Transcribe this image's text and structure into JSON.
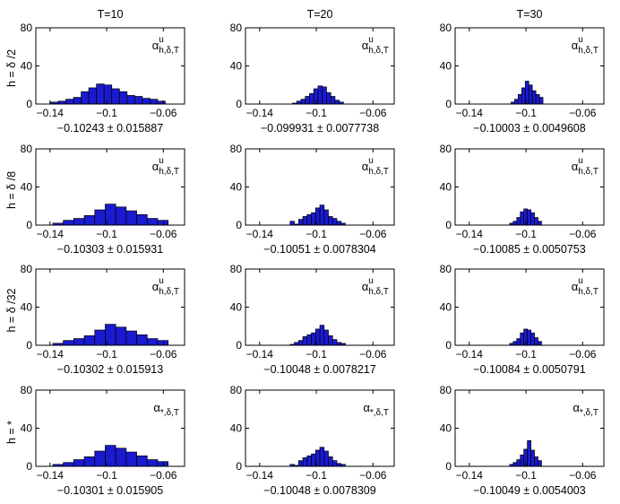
{
  "figure": {
    "columns": [
      "T=10",
      "T=20",
      "T=30"
    ],
    "rows": [
      "h = δ /2",
      "h = δ /8",
      "h = δ /32",
      "h = *"
    ]
  },
  "chart_data": [
    {
      "type": "bar",
      "row": 0,
      "col": 0,
      "title": "T=10",
      "row_label": "h = δ /2",
      "xlabel": "−0.10243 ± 0.015887",
      "annotation": {
        "base": "α",
        "sup": "u",
        "sub": "h,δ,T"
      },
      "xlim": [
        -0.15,
        -0.045
      ],
      "ylim": [
        0,
        80
      ],
      "xticks": [
        "−0.14",
        "−0.1",
        "−0.06"
      ],
      "yticks": [
        "0",
        "40",
        "80"
      ],
      "bin_edges": [
        -0.1396,
        -0.1342,
        -0.1288,
        -0.1234,
        -0.118,
        -0.1126,
        -0.1072,
        -0.1018,
        -0.0964,
        -0.091,
        -0.0856,
        -0.0802,
        -0.0748,
        -0.0694,
        -0.064,
        -0.0586
      ],
      "counts": [
        2,
        3,
        5,
        7,
        13,
        17,
        21,
        20,
        16,
        13,
        9,
        8,
        6,
        5,
        3
      ]
    },
    {
      "type": "bar",
      "row": 0,
      "col": 1,
      "title": "T=20",
      "row_label": "h = δ /2",
      "xlabel": "−0.099931 ± 0.0077738",
      "annotation": {
        "base": "α",
        "sup": "u",
        "sub": "h,δ,T"
      },
      "xlim": [
        -0.15,
        -0.045
      ],
      "ylim": [
        0,
        80
      ],
      "xticks": [
        "−0.14",
        "−0.1",
        "−0.06"
      ],
      "yticks": [
        "0",
        "40",
        "80"
      ],
      "bin_edges": [
        -0.1168,
        -0.1138,
        -0.1108,
        -0.1078,
        -0.1048,
        -0.1018,
        -0.0988,
        -0.0958,
        -0.0928,
        -0.0898,
        -0.0868,
        -0.0838,
        -0.0808
      ],
      "counts": [
        1,
        3,
        5,
        8,
        11,
        16,
        19,
        18,
        12,
        8,
        4,
        2
      ]
    },
    {
      "type": "bar",
      "row": 0,
      "col": 2,
      "title": "T=30",
      "row_label": "h = δ /2",
      "xlabel": "−0.10003 ± 0.0049608",
      "annotation": {
        "base": "α",
        "sup": "u",
        "sub": "h,δ,T"
      },
      "xlim": [
        -0.15,
        -0.045
      ],
      "ylim": [
        0,
        80
      ],
      "xticks": [
        "−0.14",
        "−0.1",
        "−0.06"
      ],
      "yticks": [
        "0",
        "40",
        "80"
      ],
      "bin_edges": [
        -0.1105,
        -0.108,
        -0.1055,
        -0.103,
        -0.1005,
        -0.098,
        -0.0955,
        -0.093,
        -0.0905,
        -0.088
      ],
      "counts": [
        2,
        5,
        10,
        17,
        24,
        20,
        14,
        10,
        7
      ]
    },
    {
      "type": "bar",
      "row": 1,
      "col": 0,
      "title": "T=10",
      "row_label": "h = δ /8",
      "xlabel": "−0.10303 ± 0.015931",
      "annotation": {
        "base": "α",
        "sup": "u",
        "sub": "h,δ,T"
      },
      "xlim": [
        -0.15,
        -0.045
      ],
      "ylim": [
        0,
        80
      ],
      "xticks": [
        "−0.14",
        "−0.1",
        "−0.06"
      ],
      "yticks": [
        "0",
        "40",
        "80"
      ],
      "bin_edges": [
        -0.138,
        -0.1306,
        -0.1232,
        -0.1158,
        -0.1084,
        -0.101,
        -0.0936,
        -0.0862,
        -0.0788,
        -0.0714,
        -0.064,
        -0.0566
      ],
      "counts": [
        2,
        5,
        7,
        10,
        16,
        22,
        19,
        15,
        11,
        7,
        5
      ]
    },
    {
      "type": "bar",
      "row": 1,
      "col": 1,
      "title": "T=20",
      "row_label": "h = δ /8",
      "xlabel": "−0.10051 ± 0.0078304",
      "annotation": {
        "base": "α",
        "sup": "u",
        "sub": "h,δ,T"
      },
      "xlim": [
        -0.15,
        -0.045
      ],
      "ylim": [
        0,
        80
      ],
      "xticks": [
        "−0.14",
        "−0.1",
        "−0.06"
      ],
      "yticks": [
        "0",
        "40",
        "80"
      ],
      "bin_edges": [
        -0.1185,
        -0.1155,
        -0.1125,
        -0.1095,
        -0.1065,
        -0.1035,
        -0.1005,
        -0.0975,
        -0.0945,
        -0.0915,
        -0.0885,
        -0.0855,
        -0.0825,
        -0.0795
      ],
      "counts": [
        4,
        1,
        6,
        9,
        11,
        13,
        18,
        21,
        16,
        9,
        7,
        4,
        2
      ]
    },
    {
      "type": "bar",
      "row": 1,
      "col": 2,
      "title": "T=30",
      "row_label": "h = δ /8",
      "xlabel": "−0.10085 ± 0.0050753",
      "annotation": {
        "base": "α",
        "sup": "u",
        "sub": "h,δ,T"
      },
      "xlim": [
        -0.15,
        -0.045
      ],
      "ylim": [
        0,
        80
      ],
      "xticks": [
        "−0.14",
        "−0.1",
        "−0.06"
      ],
      "yticks": [
        "0",
        "40",
        "80"
      ],
      "bin_edges": [
        -0.1115,
        -0.109,
        -0.1065,
        -0.104,
        -0.1015,
        -0.099,
        -0.0965,
        -0.094,
        -0.0915,
        -0.089
      ],
      "counts": [
        2,
        4,
        8,
        14,
        17,
        16,
        13,
        8,
        4
      ]
    },
    {
      "type": "bar",
      "row": 2,
      "col": 0,
      "title": "T=10",
      "row_label": "h = δ /32",
      "xlabel": "−0.10302 ± 0.015913",
      "annotation": {
        "base": "α",
        "sup": "u",
        "sub": "h,δ,T"
      },
      "xlim": [
        -0.15,
        -0.045
      ],
      "ylim": [
        0,
        80
      ],
      "xticks": [
        "−0.14",
        "−0.1",
        "−0.06"
      ],
      "yticks": [
        "0",
        "40",
        "80"
      ],
      "bin_edges": [
        -0.138,
        -0.1306,
        -0.1232,
        -0.1158,
        -0.1084,
        -0.101,
        -0.0936,
        -0.0862,
        -0.0788,
        -0.0714,
        -0.064,
        -0.0566
      ],
      "counts": [
        2,
        5,
        7,
        10,
        16,
        22,
        19,
        15,
        11,
        7,
        5
      ]
    },
    {
      "type": "bar",
      "row": 2,
      "col": 1,
      "title": "T=20",
      "row_label": "h = δ /32",
      "xlabel": "−0.10048 ± 0.0078217",
      "annotation": {
        "base": "α",
        "sup": "u",
        "sub": "h,δ,T"
      },
      "xlim": [
        -0.15,
        -0.045
      ],
      "ylim": [
        0,
        80
      ],
      "xticks": [
        "−0.14",
        "−0.1",
        "−0.06"
      ],
      "yticks": [
        "0",
        "40",
        "80"
      ],
      "bin_edges": [
        -0.1185,
        -0.1155,
        -0.1125,
        -0.1095,
        -0.1065,
        -0.1035,
        -0.1005,
        -0.0975,
        -0.0945,
        -0.0915,
        -0.0885,
        -0.0855,
        -0.0825,
        -0.0795
      ],
      "counts": [
        1,
        3,
        5,
        9,
        11,
        13,
        17,
        21,
        16,
        10,
        6,
        3,
        2
      ]
    },
    {
      "type": "bar",
      "row": 2,
      "col": 2,
      "title": "T=30",
      "row_label": "h = δ /32",
      "xlabel": "−0.10084 ± 0.0050791",
      "annotation": {
        "base": "α",
        "sup": "u",
        "sub": "h,δ,T"
      },
      "xlim": [
        -0.15,
        -0.045
      ],
      "ylim": [
        0,
        80
      ],
      "xticks": [
        "−0.14",
        "−0.1",
        "−0.06"
      ],
      "yticks": [
        "0",
        "40",
        "80"
      ],
      "bin_edges": [
        -0.1115,
        -0.109,
        -0.1065,
        -0.104,
        -0.1015,
        -0.099,
        -0.0965,
        -0.094,
        -0.0915,
        -0.089
      ],
      "counts": [
        2,
        4,
        7,
        13,
        17,
        16,
        13,
        8,
        4
      ]
    },
    {
      "type": "bar",
      "row": 3,
      "col": 0,
      "title": "T=10",
      "row_label": "h = *",
      "xlabel": "−0.10301 ± 0.015905",
      "annotation": {
        "base": "α",
        "sup": "",
        "sub": "*,δ,T"
      },
      "xlim": [
        -0.15,
        -0.045
      ],
      "ylim": [
        0,
        80
      ],
      "xticks": [
        "−0.14",
        "−0.1",
        "−0.06"
      ],
      "yticks": [
        "0",
        "40",
        "80"
      ],
      "bin_edges": [
        -0.138,
        -0.1306,
        -0.1232,
        -0.1158,
        -0.1084,
        -0.101,
        -0.0936,
        -0.0862,
        -0.0788,
        -0.0714,
        -0.064,
        -0.0566
      ],
      "counts": [
        2,
        4,
        7,
        10,
        16,
        22,
        19,
        15,
        11,
        7,
        5
      ]
    },
    {
      "type": "bar",
      "row": 3,
      "col": 1,
      "title": "T=20",
      "row_label": "h = *",
      "xlabel": "−0.10048 ± 0.0078309",
      "annotation": {
        "base": "α",
        "sup": "",
        "sub": "*,δ,T"
      },
      "xlim": [
        -0.15,
        -0.045
      ],
      "ylim": [
        0,
        80
      ],
      "xticks": [
        "−0.14",
        "−0.1",
        "−0.06"
      ],
      "yticks": [
        "0",
        "40",
        "80"
      ],
      "bin_edges": [
        -0.1185,
        -0.1155,
        -0.1125,
        -0.1095,
        -0.1065,
        -0.1035,
        -0.1005,
        -0.0975,
        -0.0945,
        -0.0915,
        -0.0885,
        -0.0855,
        -0.0825,
        -0.0795
      ],
      "counts": [
        2,
        1,
        6,
        9,
        11,
        13,
        17,
        20,
        16,
        10,
        6,
        3,
        2
      ]
    },
    {
      "type": "bar",
      "row": 3,
      "col": 2,
      "title": "T=30",
      "row_label": "h = *",
      "xlabel": "−0.10049 ± 0.0054003",
      "annotation": {
        "base": "α",
        "sup": "",
        "sub": "*,δ,T"
      },
      "xlim": [
        -0.15,
        -0.045
      ],
      "ylim": [
        0,
        80
      ],
      "xticks": [
        "−0.14",
        "−0.1",
        "−0.06"
      ],
      "yticks": [
        "0",
        "40",
        "80"
      ],
      "bin_edges": [
        -0.1115,
        -0.109,
        -0.1065,
        -0.104,
        -0.1015,
        -0.099,
        -0.0965,
        -0.094,
        -0.0915,
        -0.089
      ],
      "counts": [
        2,
        4,
        7,
        12,
        18,
        27,
        17,
        10,
        6
      ]
    }
  ]
}
